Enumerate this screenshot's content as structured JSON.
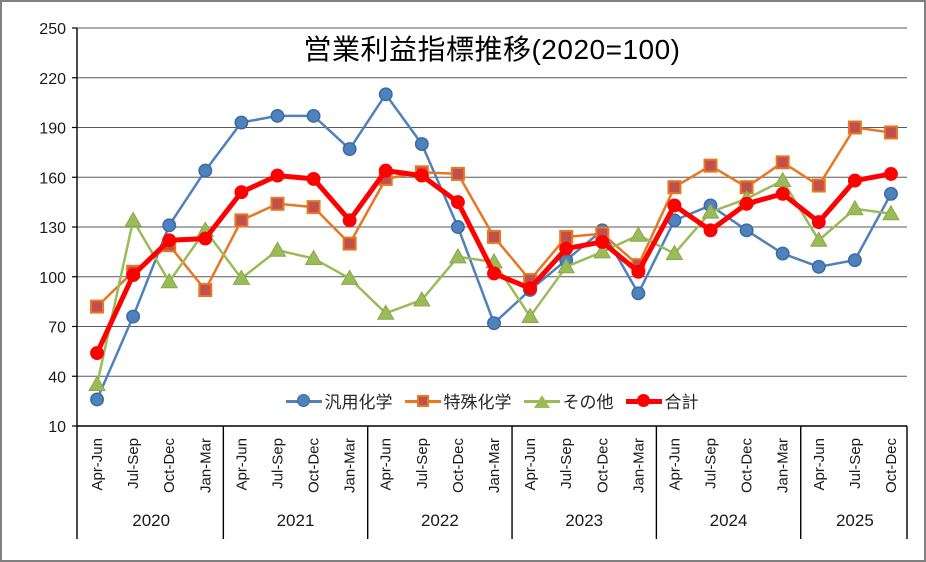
{
  "title": "営業利益指標推移(2020=100)",
  "chart_data": {
    "type": "line",
    "categories": [
      "Apr-Jun",
      "Jul-Sep",
      "Oct-Dec",
      "Jan-Mar",
      "Apr-Jun",
      "Jul-Sep",
      "Oct-Dec",
      "Jan-Mar",
      "Apr-Jun",
      "Jul-Sep",
      "Oct-Dec",
      "Jan-Mar",
      "Apr-Jun",
      "Jul-Sep",
      "Oct-Dec",
      "Jan-Mar",
      "Apr-Jun",
      "Jul-Sep",
      "Oct-Dec",
      "Jan-Mar",
      "Apr-Jun",
      "Jul-Sep",
      "Oct-Dec"
    ],
    "year_groups": [
      {
        "label": "2020",
        "count": 4
      },
      {
        "label": "2021",
        "count": 4
      },
      {
        "label": "2022",
        "count": 4
      },
      {
        "label": "2023",
        "count": 4
      },
      {
        "label": "2024",
        "count": 4
      },
      {
        "label": "2025",
        "count": 3
      }
    ],
    "yticks": [
      10,
      40,
      70,
      100,
      130,
      160,
      190,
      220,
      250
    ],
    "ylim": [
      10,
      250
    ],
    "grid": true,
    "legend_position": "bottom-inside",
    "series": [
      {
        "name": "汎用化学",
        "marker": "circle",
        "line_color": "#4F81BD",
        "marker_fill": "#4F81BD",
        "marker_stroke": "#3A6B9F",
        "line_width": 2.5,
        "values": [
          26,
          76,
          131,
          164,
          193,
          197,
          197,
          177,
          210,
          180,
          130,
          72,
          92,
          110,
          128,
          90,
          134,
          143,
          128,
          114,
          106,
          110,
          150
        ]
      },
      {
        "name": "特殊化学",
        "marker": "square",
        "line_color": "#E87722",
        "marker_fill": "#C0504D",
        "marker_stroke": "#E87722",
        "line_width": 2.5,
        "values": [
          82,
          103,
          119,
          92,
          134,
          144,
          142,
          120,
          159,
          163,
          162,
          124,
          98,
          124,
          126,
          107,
          154,
          167,
          154,
          169,
          155,
          190,
          187
        ]
      },
      {
        "name": "その他",
        "marker": "triangle",
        "line_color": "#9BBB59",
        "marker_fill": "#9BBB59",
        "marker_stroke": "#8AA84E",
        "line_width": 2.5,
        "values": [
          35,
          134,
          97,
          128,
          99,
          116,
          111,
          99,
          78,
          86,
          112,
          109,
          76,
          106,
          115,
          125,
          114,
          139,
          147,
          158,
          122,
          141,
          138
        ]
      },
      {
        "name": "合計",
        "marker": "circle",
        "line_color": "#FF0000",
        "marker_fill": "#FF0000",
        "marker_stroke": "#FF0000",
        "line_width": 5,
        "values": [
          54,
          101,
          122,
          123,
          151,
          161,
          159,
          134,
          164,
          161,
          145,
          102,
          93,
          117,
          121,
          103,
          143,
          128,
          144,
          150,
          133,
          158,
          162
        ]
      }
    ],
    "axis_color": "#000000",
    "grid_color": "#595959",
    "tick_label_color": "#1a1a1a"
  }
}
